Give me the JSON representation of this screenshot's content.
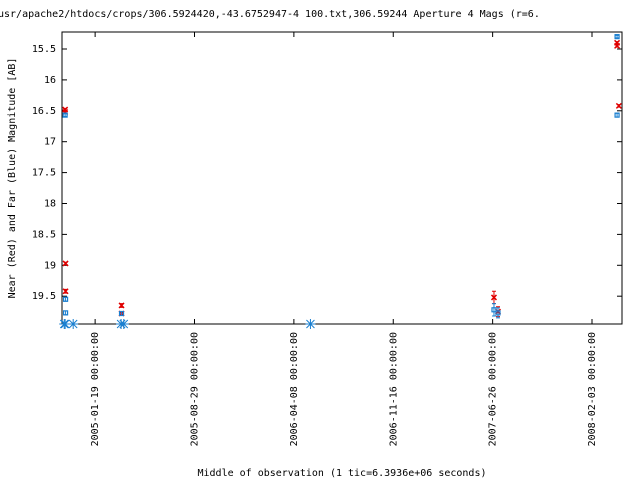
{
  "chart_data": {
    "type": "scatter",
    "title": "usr/apache2/htdocs/crops/306.5924420,-43.6752947-4 100.txt,306.59244   Aperture 4 Mags (r=6.",
    "xlabel": "Middle of observation (1 tic=6.3936e+06 seconds)",
    "ylabel": "Near (Red) and Far (Blue) Magnitude [AB]",
    "xlim": [
      "2004-11-06",
      "2008-04-10"
    ],
    "xticks": [
      "2005-01-19 00:00:00",
      "2005-08-29 00:00:00",
      "2006-04-08 00:00:00",
      "2006-11-16 00:00:00",
      "2007-06-26 00:00:00",
      "2008-02-03 00:00:00"
    ],
    "ylim": [
      15.225,
      19.95
    ],
    "yticks": [
      15.5,
      16,
      16.5,
      17,
      17.5,
      18,
      18.5,
      19,
      19.5
    ],
    "y_inverted": true,
    "series": [
      {
        "marker": "x",
        "color": "#e00000",
        "x": [
          "2004-11-13",
          "2004-11-13",
          "2004-11-14",
          "2004-11-14",
          "2005-03-19",
          "2005-03-19",
          "2007-06-29",
          "2007-07-08",
          "2008-03-30",
          "2008-03-30",
          "2008-04-03"
        ],
        "values": [
          16.48,
          16.52,
          18.97,
          19.42,
          19.65,
          19.78,
          19.52,
          19.75,
          15.4,
          15.45,
          16.42
        ],
        "errors": [
          0.02,
          0.02,
          0.02,
          0.03,
          0.03,
          0.03,
          0.1,
          0.08,
          0.02,
          0.02,
          0.02
        ]
      },
      {
        "marker": "square",
        "color": "#1a7fd0",
        "x": [
          "2004-11-13",
          "2004-11-14",
          "2004-11-14",
          "2005-03-19",
          "2007-06-29",
          "2007-07-08",
          "2008-03-30",
          "2008-03-30"
        ],
        "values": [
          16.57,
          19.55,
          19.77,
          19.78,
          19.72,
          19.77,
          15.3,
          16.57
        ],
        "errors": [
          0.02,
          0.03,
          0.03,
          0.03,
          0.1,
          0.08,
          0.02,
          0.03
        ]
      },
      {
        "marker": "star",
        "color": "#1a7fd0",
        "x": [
          "2004-11-11",
          "2004-11-13",
          "2004-12-01",
          "2005-03-18",
          "2005-03-24",
          "2006-05-15"
        ],
        "values": [
          19.95,
          19.95,
          19.95,
          19.95,
          19.95,
          19.95
        ]
      }
    ]
  }
}
